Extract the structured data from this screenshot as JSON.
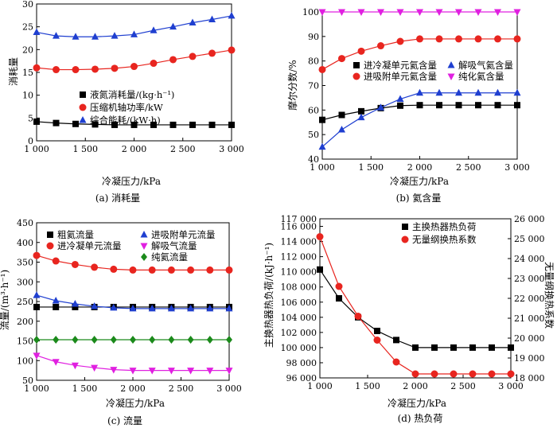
{
  "chart_data": [
    {
      "id": "a",
      "type": "line",
      "caption": "(a) 消耗量",
      "xlabel": "冷凝压力/kPa",
      "ylabel": "消耗量",
      "xlim": [
        1000,
        3000
      ],
      "ylim": [
        0,
        30
      ],
      "xticks": [
        1000,
        1500,
        2000,
        2500,
        3000
      ],
      "xtick_labels": [
        "1 000",
        "1 500",
        "2 000",
        "2 500",
        "3 000"
      ],
      "yticks": [
        0,
        5,
        10,
        15,
        20,
        25,
        30
      ],
      "ytick_labels": [
        "0",
        "5",
        "10",
        "15",
        "20",
        "25",
        "30"
      ],
      "legend_pos": "center",
      "series": [
        {
          "name": "液氮消耗量/(kg·h⁻¹)",
          "marker": "square",
          "color": "#000000",
          "x": [
            1000,
            1200,
            1400,
            1600,
            1800,
            2000,
            2200,
            2400,
            2600,
            2800,
            3000
          ],
          "y": [
            4.2,
            3.9,
            3.7,
            3.6,
            3.5,
            3.5,
            3.5,
            3.5,
            3.5,
            3.5,
            3.5
          ]
        },
        {
          "name": "压缩机轴功率/kW",
          "marker": "circle",
          "color": "#e8251f",
          "x": [
            1000,
            1200,
            1400,
            1600,
            1800,
            2000,
            2200,
            2400,
            2600,
            2800,
            3000
          ],
          "y": [
            16.0,
            15.6,
            15.6,
            15.7,
            15.9,
            16.3,
            17.0,
            17.8,
            18.5,
            19.2,
            19.9
          ]
        },
        {
          "name": "综合能耗/(kW·h)",
          "marker": "triangle",
          "color": "#1f3fd0",
          "x": [
            1000,
            1200,
            1400,
            1600,
            1800,
            2000,
            2200,
            2400,
            2600,
            2800,
            3000
          ],
          "y": [
            23.8,
            23.0,
            22.8,
            22.8,
            23.0,
            23.3,
            24.2,
            25.0,
            25.9,
            26.6,
            27.4
          ]
        }
      ]
    },
    {
      "id": "b",
      "type": "line",
      "caption": "(b) 氦含量",
      "xlabel": "冷凝压力/kPa",
      "ylabel": "摩尔分数/%",
      "xlim": [
        1000,
        3000
      ],
      "ylim": [
        40,
        100
      ],
      "xticks": [
        1000,
        1500,
        2000,
        2500,
        3000
      ],
      "xtick_labels": [
        "1 000",
        "1 500",
        "2 000",
        "2 500",
        "3 000"
      ],
      "yticks": [
        40,
        50,
        60,
        70,
        80,
        90,
        100
      ],
      "ytick_labels": [
        "40",
        "50",
        "60",
        "70",
        "80",
        "90",
        "100"
      ],
      "legend_pos": "center",
      "series": [
        {
          "name": "进冷凝单元氦含量",
          "marker": "square",
          "color": "#000000",
          "x": [
            1000,
            1200,
            1400,
            1600,
            1800,
            2000,
            2200,
            2400,
            2600,
            2800,
            3000
          ],
          "y": [
            56,
            58,
            59.5,
            60.8,
            61.8,
            62,
            62,
            62,
            62,
            62,
            62
          ]
        },
        {
          "name": "进吸附单元氦含量",
          "marker": "circle",
          "color": "#e8251f",
          "x": [
            1000,
            1200,
            1400,
            1600,
            1800,
            2000,
            2200,
            2400,
            2600,
            2800,
            3000
          ],
          "y": [
            76.5,
            81,
            84,
            86.2,
            88,
            89,
            89,
            89,
            89,
            89,
            89
          ]
        },
        {
          "name": "解吸气氦含量",
          "marker": "triangle",
          "color": "#1f3fd0",
          "x": [
            1000,
            1200,
            1400,
            1600,
            1800,
            2000,
            2200,
            2400,
            2600,
            2800,
            3000
          ],
          "y": [
            45,
            52,
            57,
            61,
            64.5,
            67,
            67,
            67,
            67,
            67,
            67
          ]
        },
        {
          "name": "纯化氦含量",
          "marker": "triangle-down",
          "color": "#e020e0",
          "x": [
            1000,
            1200,
            1400,
            1600,
            1800,
            2000,
            2200,
            2400,
            2600,
            2800,
            3000
          ],
          "y": [
            100,
            100,
            100,
            100,
            100,
            100,
            100,
            100,
            100,
            100,
            100
          ]
        }
      ]
    },
    {
      "id": "c",
      "type": "line",
      "caption": "(c) 流量",
      "xlabel": "冷凝压力/kPa",
      "ylabel": "流量/(m³·h⁻¹)",
      "xlim": [
        1000,
        3000
      ],
      "ylim": [
        50,
        450
      ],
      "xticks": [
        1000,
        1500,
        2000,
        2500,
        3000
      ],
      "xtick_labels": [
        "1 000",
        "1 500",
        "2 000",
        "2 500",
        "3 000"
      ],
      "yticks": [
        50,
        100,
        150,
        200,
        250,
        300,
        350,
        400,
        450
      ],
      "ytick_labels": [
        "50",
        "100",
        "150",
        "200",
        "250",
        "300",
        "350",
        "400",
        "450"
      ],
      "legend_pos": "top",
      "series": [
        {
          "name": "粗氦流量",
          "marker": "square",
          "color": "#000000",
          "x": [
            1000,
            1200,
            1400,
            1600,
            1800,
            2000,
            2200,
            2400,
            2600,
            2800,
            3000
          ],
          "y": [
            236,
            236,
            236,
            236,
            236,
            236,
            236,
            236,
            236,
            236,
            236
          ]
        },
        {
          "name": "进冷凝单元流量",
          "marker": "circle",
          "color": "#e8251f",
          "x": [
            1000,
            1200,
            1400,
            1600,
            1800,
            2000,
            2200,
            2400,
            2600,
            2800,
            3000
          ],
          "y": [
            367,
            353,
            344,
            337,
            332,
            330,
            330,
            330,
            330,
            330,
            330
          ]
        },
        {
          "name": "进吸附单元流量",
          "marker": "triangle",
          "color": "#1f3fd0",
          "x": [
            1000,
            1200,
            1400,
            1600,
            1800,
            2000,
            2200,
            2400,
            2600,
            2800,
            3000
          ],
          "y": [
            266,
            252,
            244,
            238,
            234,
            232,
            232,
            232,
            232,
            232,
            232
          ]
        },
        {
          "name": "解吸气流量",
          "marker": "triangle-down",
          "color": "#e020e0",
          "x": [
            1000,
            1200,
            1400,
            1600,
            1800,
            2000,
            2200,
            2400,
            2600,
            2800,
            3000
          ],
          "y": [
            113,
            97,
            88,
            82,
            77,
            75,
            75,
            75,
            75,
            75,
            75
          ]
        },
        {
          "name": "纯氦流量",
          "marker": "diamond",
          "color": "#1b8a1b",
          "x": [
            1000,
            1200,
            1400,
            1600,
            1800,
            2000,
            2200,
            2400,
            2600,
            2800,
            3000
          ],
          "y": [
            153,
            153,
            153,
            153,
            153,
            153,
            153,
            153,
            153,
            153,
            153
          ]
        }
      ]
    },
    {
      "id": "d",
      "type": "line",
      "caption": "(d) 热负荷",
      "xlabel": "冷凝压力/kPa",
      "ylabel": "主换热器热负荷/(kJ·h⁻¹)",
      "ylabel_right": "无量纲换热系数",
      "xlim": [
        1000,
        3000
      ],
      "ylim": [
        96000,
        117000
      ],
      "ylim_right": [
        18000,
        26000
      ],
      "xticks": [
        1000,
        1500,
        2000,
        2500,
        3000
      ],
      "xtick_labels": [
        "1 000",
        "1 500",
        "2 000",
        "2 500",
        "3 000"
      ],
      "yticks": [
        96000,
        98000,
        100000,
        102000,
        104000,
        106000,
        108000,
        110000,
        112000,
        114000,
        116000,
        117000
      ],
      "ytick_labels": [
        "96 000",
        "98 000",
        "100 000",
        "102 000",
        "104 000",
        "106 000",
        "108 000",
        "110 000",
        "112 000",
        "114 000",
        "116 000",
        "117 000"
      ],
      "yticks_right": [
        18000,
        19000,
        20000,
        21000,
        22000,
        23000,
        24000,
        25000,
        26000
      ],
      "ytick_labels_right": [
        "18 000",
        "19 000",
        "20 000",
        "21 000",
        "22 000",
        "23 000",
        "24 000",
        "25 000",
        "26 000"
      ],
      "legend_pos": "top-right",
      "series": [
        {
          "name": "主换热器热负荷",
          "marker": "square",
          "color": "#000000",
          "axis": "left",
          "x": [
            1000,
            1200,
            1400,
            1600,
            1800,
            2000,
            2200,
            2400,
            2600,
            2800,
            3000
          ],
          "y": [
            110300,
            106500,
            104000,
            102200,
            101000,
            100000,
            100000,
            100000,
            100000,
            100000,
            100000
          ]
        },
        {
          "name": "无量纲换热系数",
          "marker": "circle",
          "color": "#e8251f",
          "axis": "right",
          "x": [
            1000,
            1200,
            1400,
            1600,
            1800,
            2000,
            2200,
            2400,
            2600,
            2800,
            3000
          ],
          "y": [
            25100,
            22600,
            21100,
            19900,
            18800,
            18200,
            18200,
            18200,
            18200,
            18200,
            18200
          ]
        }
      ]
    }
  ]
}
